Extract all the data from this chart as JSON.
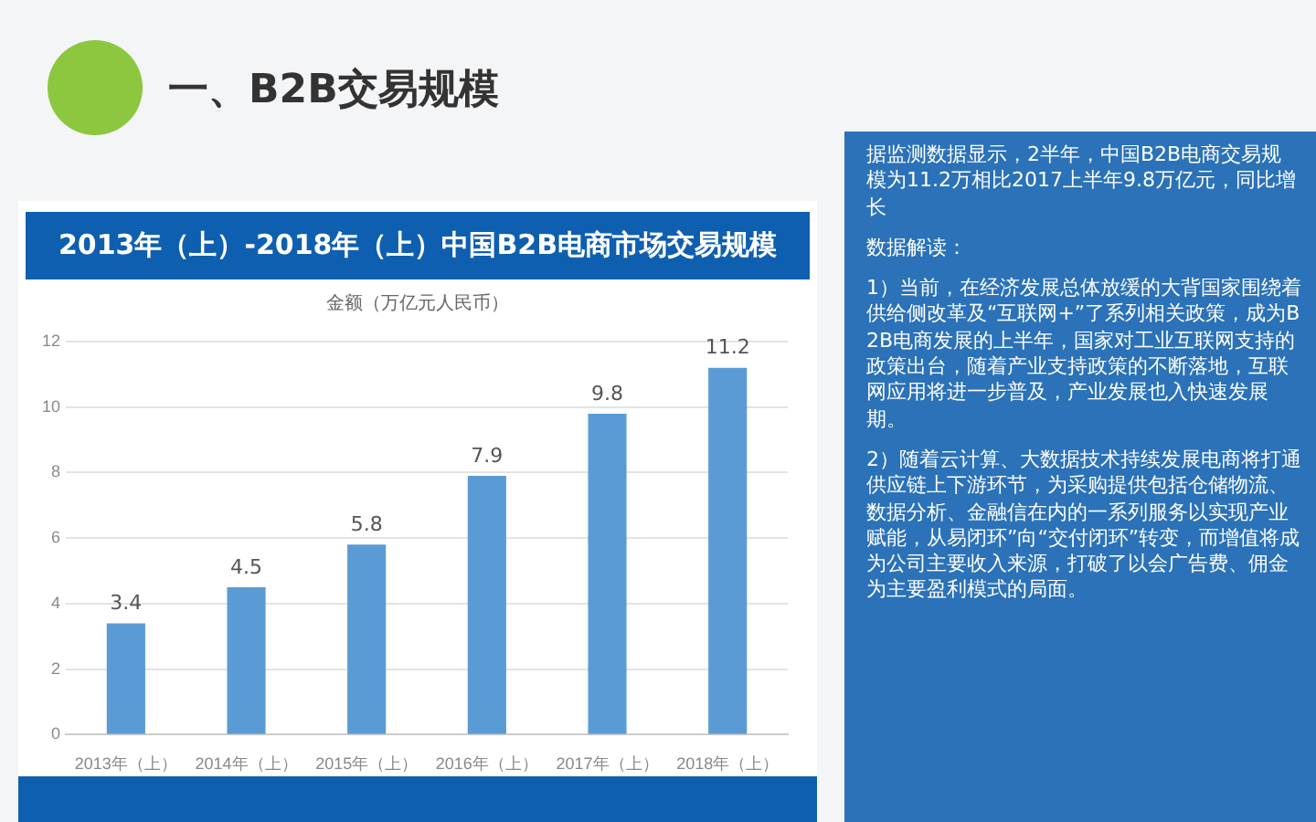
{
  "chart_data": {
    "type": "bar",
    "title": "2013年（上）-2018年（上）中国B2B电商市场交易规模",
    "ylabel": "金额（万亿元人民币）",
    "categories": [
      "2013年（上）",
      "2014年（上）",
      "2015年（上）",
      "2016年（上）",
      "2017年（上）",
      "2018年（上）"
    ],
    "values": [
      3.4,
      4.5,
      5.8,
      7.9,
      9.8,
      11.2
    ],
    "color": "#5b9bd5",
    "ylim": [
      0,
      12
    ],
    "yticks": [
      0,
      2,
      4,
      6,
      8,
      10,
      12
    ],
    "grid": "y",
    "data_labels": true,
    "annotations": [
      "一、B2B交易规模",
      "据监测数据显示，2半年，中国B2B电商交易规模为11.2万相比2017上半年9.8万亿元，同比增长",
      "数据解读：",
      "1）当前，在经济发展总体放缓的大背国家围绕着供给侧改革及“互联网+”了系列相关政策，成为B2B电商发展的上半年，国家对工业互联网支持的政策出台，随着产业支持政策的不断落地，互联网应用将进一步普及，产业发展也入快速发展期。",
      "2）随着云计算、大数据技术持续发展电商将打通供应链上下游环节，为采购提供包括仓储物流、数据分析、金融信在内的一系列服务以实现产业赋能，从易闭环”向“交付闭环”转变，而增值将成为公司主要收入来源，打破了以会广告费、佣金为主要盈利模式的局面。"
    ]
  }
}
